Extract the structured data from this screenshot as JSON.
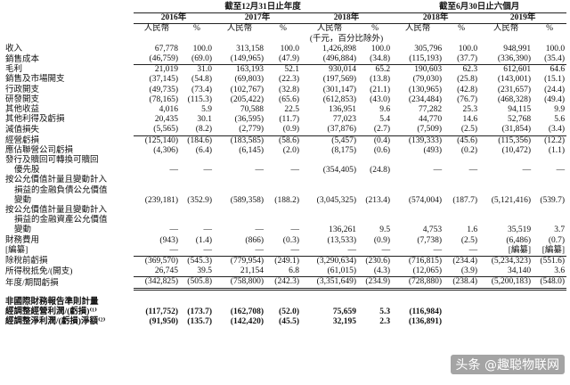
{
  "table": {
    "periods": [
      "截至12月31日止年度",
      "截至6月30日止六個月"
    ],
    "years": [
      "2016年",
      "2017年",
      "2018年",
      "2018年",
      "2019年"
    ],
    "units": [
      "人民幣",
      "%"
    ],
    "unit_note": "(千元，百分比除外)",
    "rows": [
      {
        "label": [
          "收入"
        ],
        "values": [
          "67,778",
          "100.0",
          "313,158",
          "100.0",
          "1,426,898",
          "100.0",
          "305,796",
          "100.0",
          "948,991",
          "100.0"
        ]
      },
      {
        "label": [
          "銷售成本"
        ],
        "values": [
          "(46,759)",
          "(69.0)",
          "(149,965)",
          "(47.9)",
          "(496,884)",
          "(34.8)",
          "(115,193)",
          "(37.7)",
          "(336,390)",
          "(35.4)"
        ]
      },
      {
        "label": [
          "毛利"
        ],
        "values": [
          "21,019",
          "31.0",
          "163,193",
          "52.1",
          "930,014",
          "65.2",
          "190,603",
          "62.3",
          "612,601",
          "64.6"
        ]
      },
      {
        "label": [
          "銷售及市場開支"
        ],
        "values": [
          "(37,145)",
          "(54.8)",
          "(69,803)",
          "(22.3)",
          "(197,569)",
          "(13.8)",
          "(79,030)",
          "(25.8)",
          "(143,001)",
          "(15.1)"
        ]
      },
      {
        "label": [
          "行政開支"
        ],
        "values": [
          "(49,735)",
          "(73.4)",
          "(102,767)",
          "(32.8)",
          "(301,147)",
          "(21.1)",
          "(130,965)",
          "(42.8)",
          "(231,657)",
          "(24.4)"
        ]
      },
      {
        "label": [
          "研發開支"
        ],
        "values": [
          "(78,165)",
          "(115.3)",
          "(205,422)",
          "(65.6)",
          "(612,853)",
          "(43.0)",
          "(234,484)",
          "(76.7)",
          "(468,328)",
          "(49.4)"
        ]
      },
      {
        "label": [
          "其他收益"
        ],
        "values": [
          "4,016",
          "5.9",
          "70,588",
          "22.5",
          "136,951",
          "9.6",
          "77,282",
          "25.3",
          "94,115",
          "9.9"
        ]
      },
      {
        "label": [
          "其他利得及虧損"
        ],
        "values": [
          "20,435",
          "30.1",
          "(36,595)",
          "(11.7)",
          "77,023",
          "5.4",
          "44,770",
          "14.6",
          "52,768",
          "5.6"
        ]
      },
      {
        "label": [
          "減值損失"
        ],
        "values": [
          "(5,565)",
          "(8.2)",
          "(2,779)",
          "(0.9)",
          "(37,876)",
          "(2.7)",
          "(7,509)",
          "(2.5)",
          "(31,854)",
          "(3.4)"
        ]
      },
      {
        "label": [
          "經營虧損"
        ],
        "values": [
          "(125,140)",
          "(184.6)",
          "(183,585)",
          "(58.6)",
          "(5,457)",
          "(0.4)",
          "(139,333)",
          "(45.6)",
          "(115,356)",
          "(12.2)"
        ]
      },
      {
        "label": [
          "應佔聯營公司虧損"
        ],
        "values": [
          "(4,306)",
          "(6.4)",
          "(6,145)",
          "(2.0)",
          "(8,175)",
          "(0.6)",
          "(493)",
          "(0.2)",
          "(10,472)",
          "(1.1)"
        ]
      },
      {
        "label": [
          "發行及贖回可轉換可贖回",
          "優先股"
        ],
        "values": [
          "—",
          "—",
          "—",
          "—",
          "(354,405)",
          "(24.8)",
          "—",
          "—",
          "—",
          "—"
        ]
      },
      {
        "label": [
          "按公允價值計量且變動計入",
          "損益的金融負債公允價值",
          "變動"
        ],
        "values": [
          "(239,181)",
          "(352.9)",
          "(589,358)",
          "(188.2)",
          "(3,045,325)",
          "(213.4)",
          "(574,004)",
          "(187.7)",
          "(5,121,416)",
          "(539.7)"
        ]
      },
      {
        "label": [
          "按公允價值計量且變動計入",
          "損益的金融資產公允價值",
          "變動"
        ],
        "values": [
          "—",
          "—",
          "—",
          "—",
          "136,261",
          "9.5",
          "4,753",
          "1.6",
          "35,519",
          "3.7"
        ]
      },
      {
        "label": [
          "財務費用"
        ],
        "values": [
          "(943)",
          "(1.4)",
          "(866)",
          "(0.3)",
          "(13,533)",
          "(0.9)",
          "(7,738)",
          "(2.5)",
          "(6,486)",
          "(0.7)"
        ]
      },
      {
        "label": [
          "[編纂]"
        ],
        "values": [
          "—",
          "—",
          "—",
          "—",
          "—",
          "—",
          "—",
          "—",
          "[編纂]",
          "[編纂]"
        ]
      },
      {
        "label": [
          "除稅前虧損"
        ],
        "values": [
          "(369,570)",
          "(545.3)",
          "(779,954)",
          "(249.1)",
          "(3,290,634)",
          "(230.6)",
          "(716,815)",
          "(234.4)",
          "(5,234,323)",
          "(551.6)"
        ]
      },
      {
        "label": [
          "所得稅抵免/(開支)"
        ],
        "values": [
          "26,745",
          "39.5",
          "21,154",
          "6.8",
          "(61,015)",
          "(4.3)",
          "(12,065)",
          "(3.9)",
          "34,140",
          "3.6"
        ]
      },
      {
        "label": [
          "年度/期間虧損"
        ],
        "values": [
          "(342,825)",
          "(505.8)",
          "(758,800)",
          "(242.3)",
          "(3,351,649)",
          "(234.9)",
          "(728,880)",
          "(238.4)",
          "(5,200,183)",
          "(548.0)"
        ]
      }
    ],
    "section": "非國際財務報告準則計量",
    "adjusted_rows": [
      {
        "label": [
          "經調整經營利潤/(虧損)⁽¹⁾"
        ],
        "values": [
          "(117,752)",
          "(173.7)",
          "(162,708)",
          "(52.0)",
          "75,659",
          "5.3",
          "(116,984)",
          null,
          null,
          null
        ]
      },
      {
        "label": [
          "經調整淨利潤/(虧損)淨額⁽²⁾"
        ],
        "values": [
          "(91,950)",
          "(135.7)",
          "(142,420)",
          "(45.5)",
          "32,195",
          "2.3",
          "(136,891)",
          null,
          null,
          null
        ]
      }
    ],
    "watermark": "头条 @趣聪物联网"
  }
}
